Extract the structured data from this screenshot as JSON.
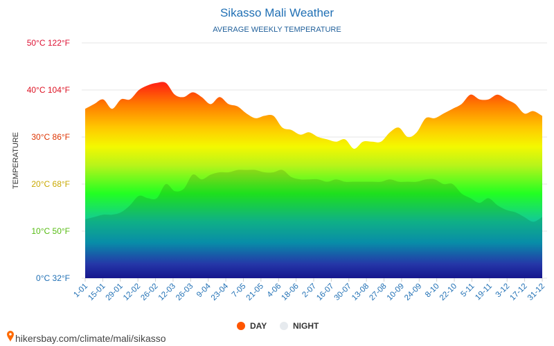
{
  "chart_data": {
    "type": "area",
    "title": "Sikasso Mali Weather",
    "subtitle": "AVERAGE WEEKLY TEMPERATURE",
    "ylabel": "TEMPERATURE",
    "ylim": [
      0,
      50
    ],
    "y_ticks": [
      {
        "value": 0,
        "label": "0°C 32°F",
        "color": "#1f6fb4"
      },
      {
        "value": 10,
        "label": "10°C 50°F",
        "color": "#55bb11"
      },
      {
        "value": 20,
        "label": "20°C 68°F",
        "color": "#c8a800"
      },
      {
        "value": 30,
        "label": "30°C 86°F",
        "color": "#dd3300"
      },
      {
        "value": 40,
        "label": "40°C 104°F",
        "color": "#dd1122"
      },
      {
        "value": 50,
        "label": "50°C 122°F",
        "color": "#dd1133"
      }
    ],
    "x_tick_labels": [
      "1-01",
      "15-01",
      "29-01",
      "12-02",
      "26-02",
      "12-03",
      "26-03",
      "9-04",
      "23-04",
      "7-05",
      "21-05",
      "4-06",
      "18-06",
      "2-07",
      "16-07",
      "30-07",
      "13-08",
      "27-08",
      "10-09",
      "24-09",
      "8-10",
      "22-10",
      "5-11",
      "19-11",
      "3-12",
      "17-12",
      "31-12"
    ],
    "series": [
      {
        "name": "DAY",
        "color": "#ff5500",
        "values": [
          36,
          37,
          38,
          36,
          38,
          38,
          40,
          41,
          41.5,
          41.5,
          39,
          38.5,
          39.5,
          38.5,
          37,
          38.5,
          37,
          36.5,
          35,
          34,
          34.5,
          34.5,
          32,
          31.5,
          30.5,
          31,
          30,
          29.5,
          29,
          29.5,
          27.5,
          29,
          29,
          29,
          31,
          32,
          30,
          31,
          34,
          34,
          35,
          36,
          37,
          39,
          38,
          38,
          39,
          38,
          37,
          35,
          35.5,
          34.5
        ]
      },
      {
        "name": "NIGHT",
        "color": "#e6eaee",
        "values": [
          12.5,
          13,
          13.5,
          13.5,
          14,
          15.5,
          17.5,
          17,
          17,
          20,
          18.5,
          19,
          22,
          21,
          22,
          22.5,
          22.5,
          23,
          23,
          23,
          22.5,
          22.5,
          23,
          21.5,
          21,
          21,
          21,
          20.5,
          21,
          20.5,
          20.5,
          20.5,
          20.5,
          20.5,
          21,
          20.5,
          20.5,
          20.5,
          21,
          21,
          20,
          20,
          18,
          17,
          16,
          17,
          15.5,
          14.5,
          14,
          13,
          12,
          13
        ]
      }
    ],
    "legend": {
      "position": "bottom",
      "items": [
        "DAY",
        "NIGHT"
      ]
    },
    "grid": true
  },
  "footer": {
    "source": "hikersbay.com/climate/mali/sikasso",
    "pin_color": "#ff6a00"
  }
}
